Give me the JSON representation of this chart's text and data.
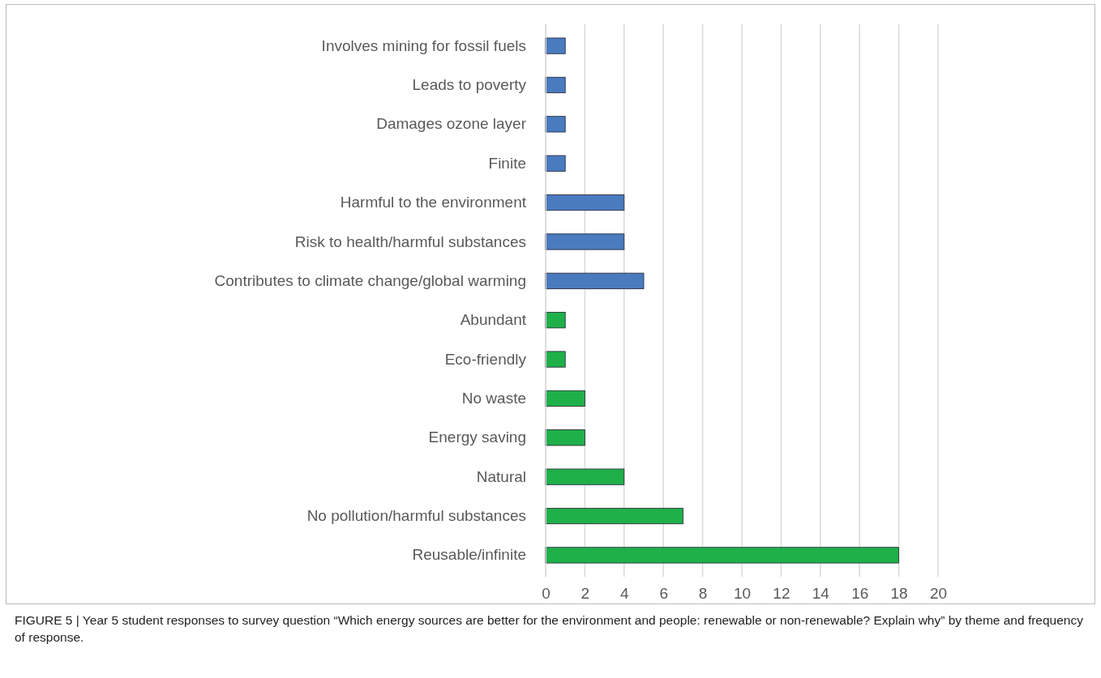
{
  "chart_data": {
    "type": "bar",
    "orientation": "horizontal",
    "categories": [
      "Involves mining for fossil fuels",
      "Leads to poverty",
      "Damages ozone layer",
      "Finite",
      "Harmful to the environment",
      "Risk to health/harmful substances",
      "Contributes to climate change/global warming",
      "Abundant",
      "Eco-friendly",
      "No waste",
      "Energy saving",
      "Natural",
      "No pollution/harmful substances",
      "Reusable/infinite"
    ],
    "values": [
      1,
      1,
      1,
      1,
      4,
      4,
      5,
      1,
      1,
      2,
      2,
      4,
      7,
      18
    ],
    "colors": [
      "#4a7bbf",
      "#4a7bbf",
      "#4a7bbf",
      "#4a7bbf",
      "#4a7bbf",
      "#4a7bbf",
      "#4a7bbf",
      "#1fb04a",
      "#1fb04a",
      "#1fb04a",
      "#1fb04a",
      "#1fb04a",
      "#1fb04a",
      "#1fb04a"
    ],
    "xlim": [
      0,
      20
    ],
    "xticks": [
      0,
      2,
      4,
      6,
      8,
      10,
      12,
      14,
      16,
      18,
      20
    ],
    "grid": "x",
    "annotations": [
      "FIGURE 5 | Year 5 student responses to survey question “Which energy sources are better for the environment and people: renewable or non-renewable? Explain why” by theme and frequency of response."
    ]
  }
}
